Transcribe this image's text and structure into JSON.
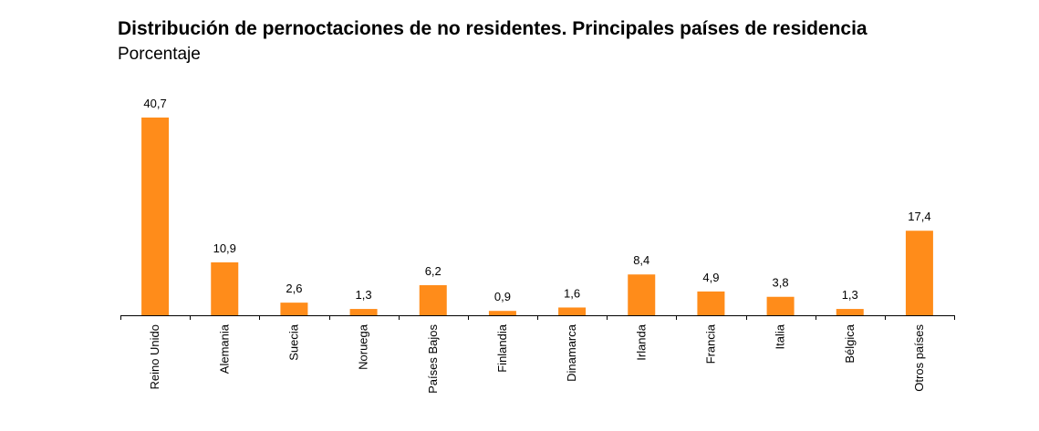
{
  "chart_data": {
    "type": "bar",
    "title": "Distribución de pernoctaciones de no residentes. Principales países de residencia",
    "subtitle": "Porcentaje",
    "categories": [
      "Reino Unido",
      "Alemania",
      "Suecia",
      "Noruega",
      "Países Bajos",
      "Finlandia",
      "Dinamarca",
      "Irlanda",
      "Francia",
      "Italia",
      "Bélgica",
      "Otros países"
    ],
    "values": [
      40.7,
      10.9,
      2.6,
      1.3,
      6.2,
      0.9,
      1.6,
      8.4,
      4.9,
      3.8,
      1.3,
      17.4
    ],
    "value_labels": [
      "40,7",
      "10,9",
      "2,6",
      "1,3",
      "6,2",
      "0,9",
      "1,6",
      "8,4",
      "4,9",
      "3,8",
      "1,3",
      "17,4"
    ],
    "bar_color": "#ff8c1a",
    "ylim": [
      0,
      40.7
    ],
    "grid": false,
    "legend": "none"
  }
}
